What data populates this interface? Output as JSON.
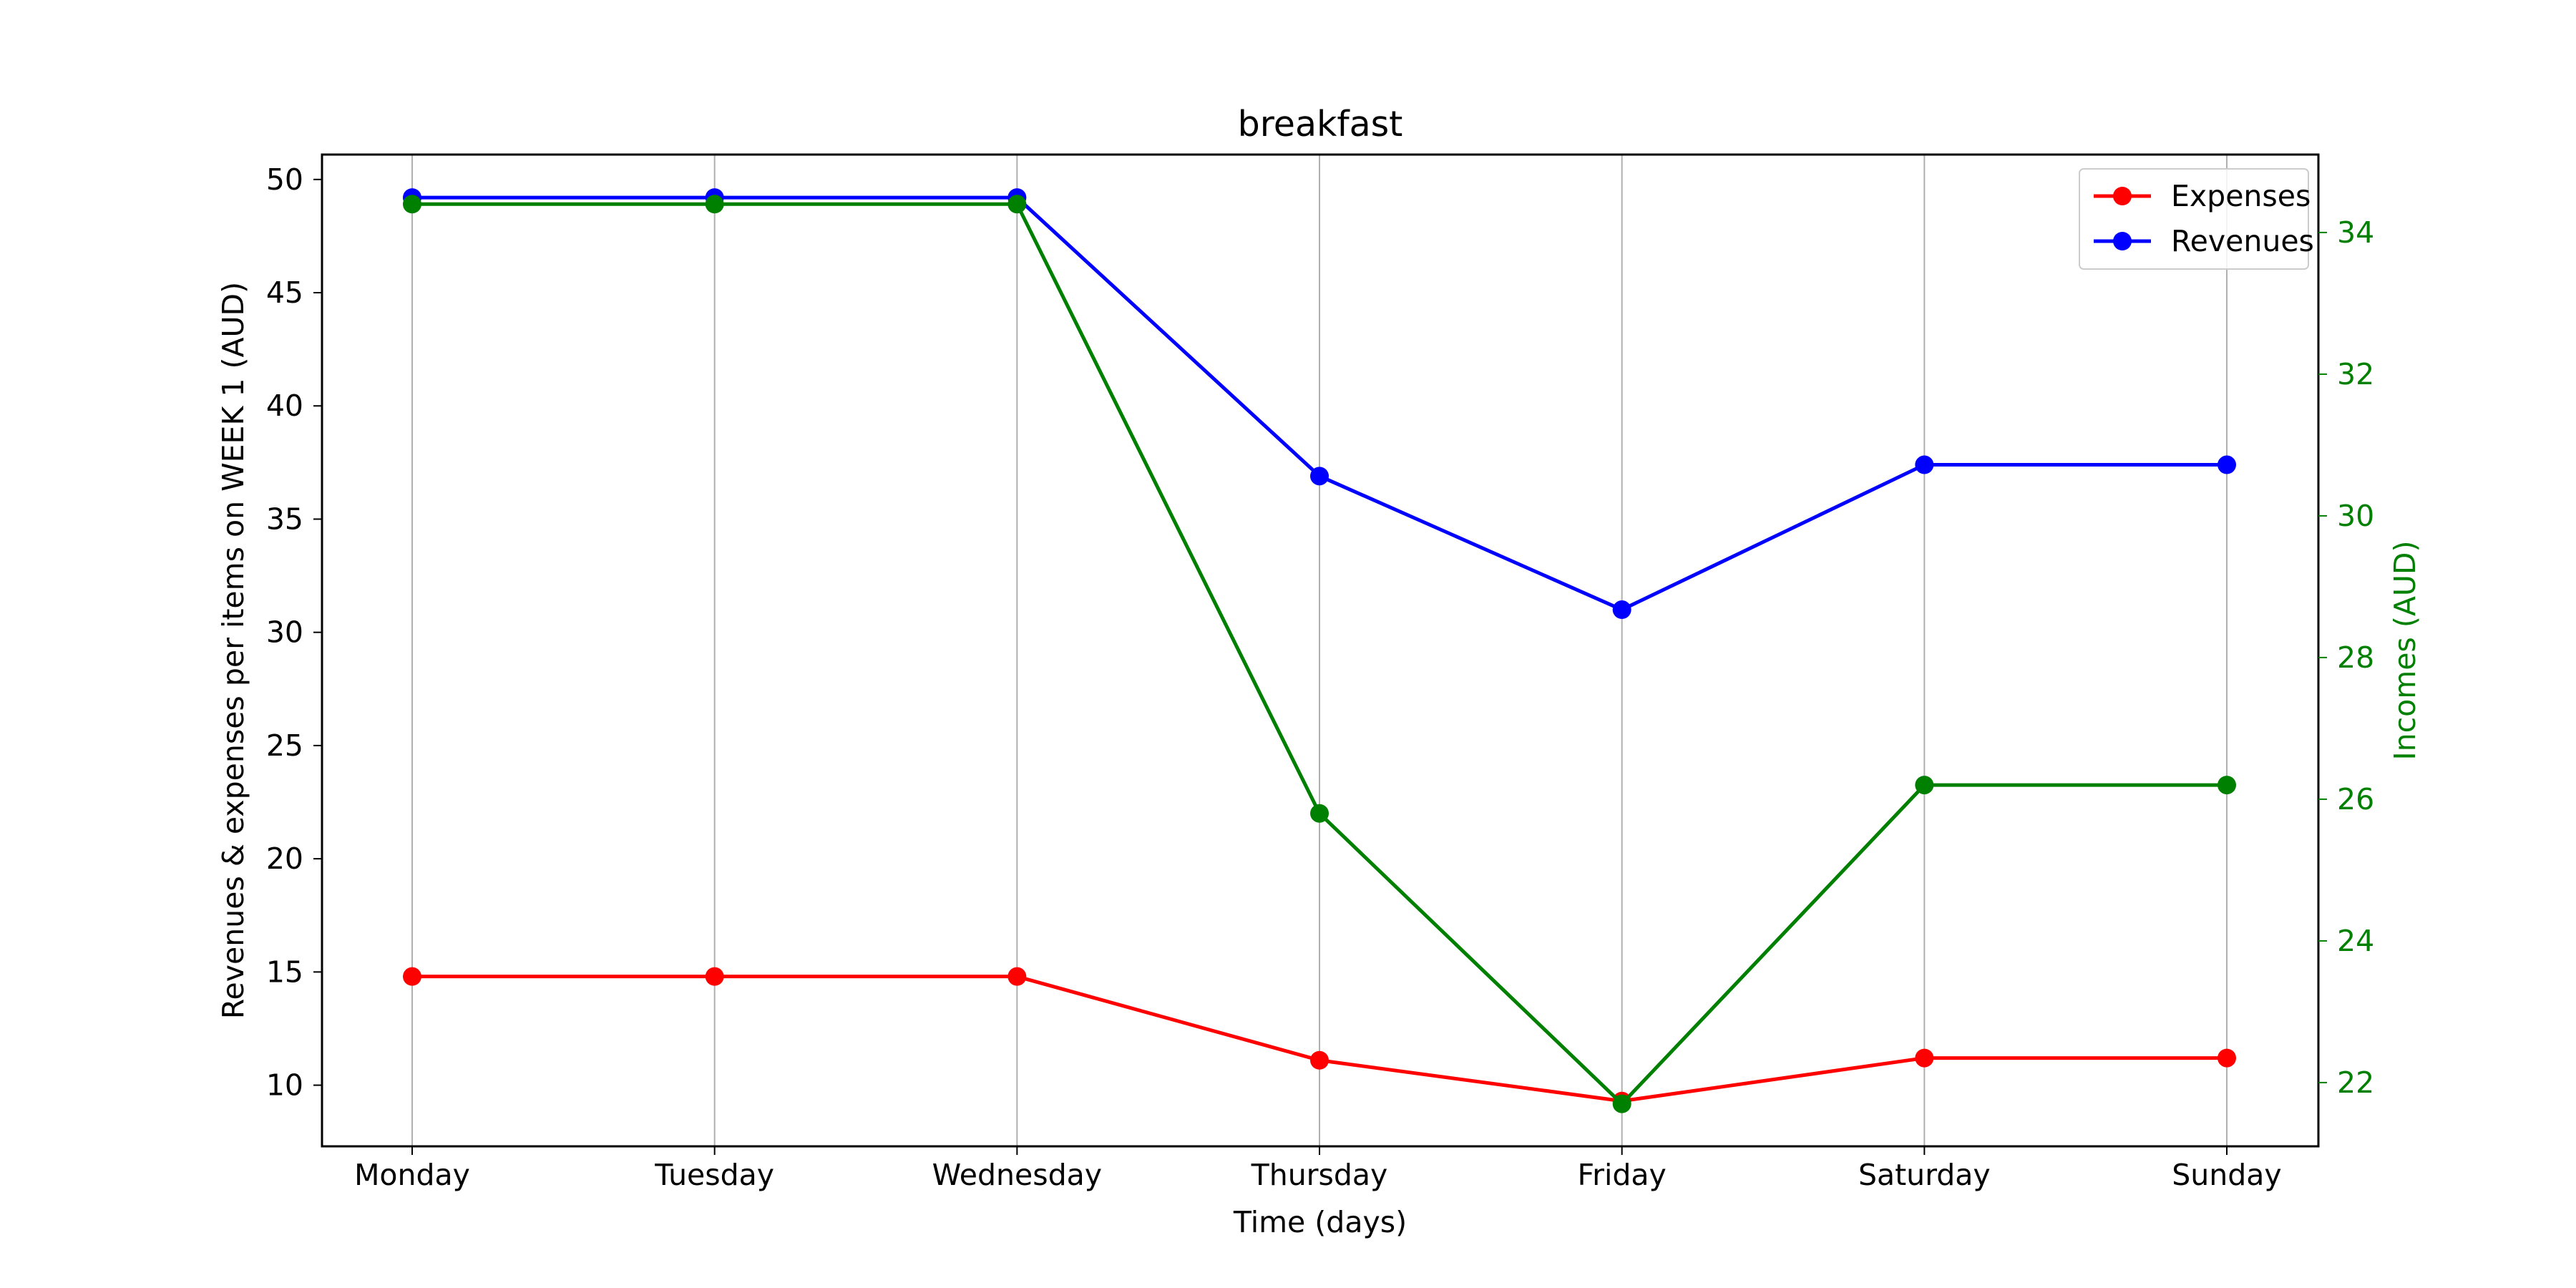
{
  "chart_data": {
    "type": "line",
    "title": "breakfast",
    "xlabel": "Time (days)",
    "ylabel": "Revenues & expenses  per items on WEEK 1 (AUD)",
    "y2label": "Incomes  (AUD)",
    "categories": [
      "Monday",
      "Tuesday",
      "Wednesday",
      "Thursday",
      "Friday",
      "Saturday",
      "Sunday"
    ],
    "ylim": [
      7.3,
      51.1
    ],
    "yticks": [
      10,
      15,
      20,
      25,
      30,
      35,
      40,
      45,
      50
    ],
    "y2lim": [
      21.1,
      35.1
    ],
    "y2ticks": [
      22,
      24,
      26,
      28,
      30,
      32,
      34
    ],
    "grid": "vertical",
    "legend": "top-right",
    "series": [
      {
        "name": "Expenses",
        "axis": "left",
        "color": "#ff0000",
        "values": [
          14.8,
          14.8,
          14.8,
          11.1,
          9.3,
          11.2,
          11.2
        ]
      },
      {
        "name": "Revenues",
        "axis": "left",
        "color": "#0000ff",
        "values": [
          49.2,
          49.2,
          49.2,
          36.9,
          31.0,
          37.4,
          37.4
        ]
      },
      {
        "axis": "right",
        "color": "#008000",
        "values": [
          34.4,
          34.4,
          34.4,
          25.8,
          21.7,
          26.2,
          26.2
        ]
      }
    ],
    "legend_entries": [
      "Expenses",
      "Revenues"
    ],
    "right_axis_color": "#008000"
  }
}
